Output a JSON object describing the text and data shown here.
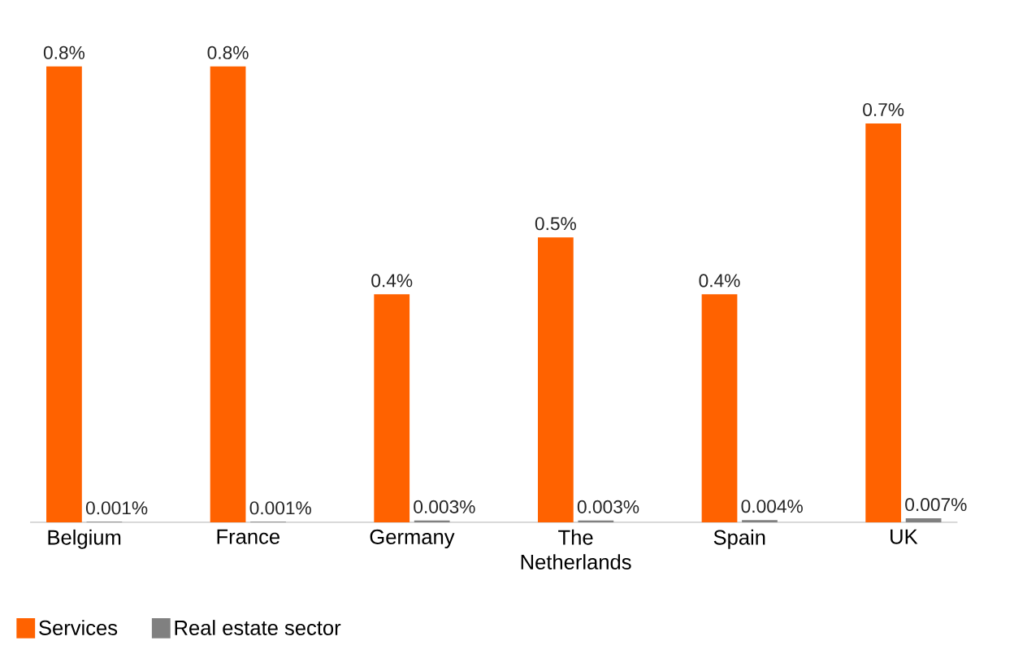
{
  "chart_data": {
    "type": "bar",
    "categories": [
      "Belgium",
      "France",
      "Germany",
      "The Netherlands",
      "Spain",
      "UK"
    ],
    "series": [
      {
        "name": "Services",
        "color": "#ff6200",
        "values": [
          0.8,
          0.8,
          0.4,
          0.5,
          0.4,
          0.7
        ],
        "value_labels": [
          "0.8%",
          "0.8%",
          "0.4%",
          "0.5%",
          "0.4%",
          "0.7%"
        ]
      },
      {
        "name": "Real estate sector",
        "color": "#808080",
        "values": [
          0.001,
          0.001,
          0.003,
          0.003,
          0.004,
          0.007
        ],
        "value_labels": [
          "0.001%",
          "0.001%",
          "0.003%",
          "0.003%",
          "0.004%",
          "0.007%"
        ]
      }
    ],
    "ylim": [
      0,
      0.8
    ],
    "tick_labels": "x",
    "legend": "bottom left"
  }
}
